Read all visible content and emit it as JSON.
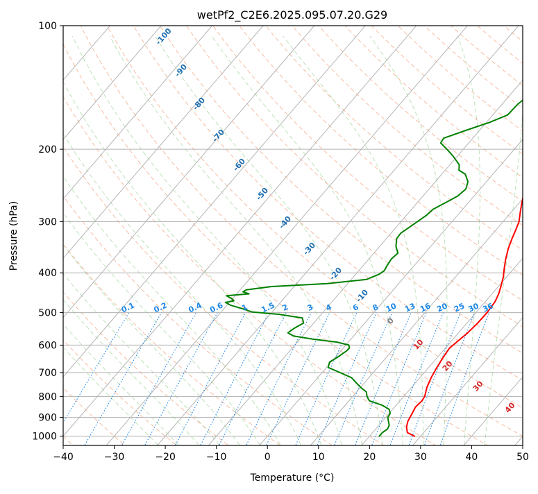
{
  "chart_data": {
    "type": "line",
    "title": "wetPf2_C2E6.2025.095.07.20.G29",
    "xlabel": "Temperature (°C)",
    "ylabel": "Pressure (hPa)",
    "xlim": [
      -40,
      50
    ],
    "ylim": [
      1050,
      100
    ],
    "y_scale": "log",
    "grid": true,
    "x_ticks": [
      "−40",
      "−30",
      "−20",
      "−10",
      "0",
      "10",
      "20",
      "30",
      "40",
      "50"
    ],
    "y_ticks": [
      {
        "value": 1000,
        "label": "1000"
      },
      {
        "value": 900,
        "label": "900"
      },
      {
        "value": 800,
        "label": "800"
      },
      {
        "value": 700,
        "label": "700"
      },
      {
        "value": 600,
        "label": "600"
      },
      {
        "value": 500,
        "label": "500"
      },
      {
        "value": 400,
        "label": "400"
      },
      {
        "value": 300,
        "label": "300"
      },
      {
        "value": 200,
        "label": "200"
      },
      {
        "value": 100,
        "label": "100"
      }
    ],
    "series": [
      {
        "role": "temperature",
        "color": "#ff0000",
        "points": [
          [
            28.8,
            1000
          ],
          [
            26.8,
            980
          ],
          [
            25.7,
            950
          ],
          [
            25.0,
            920
          ],
          [
            24.5,
            880
          ],
          [
            24.1,
            850
          ],
          [
            24.3,
            820
          ],
          [
            24.1,
            800
          ],
          [
            23.0,
            760
          ],
          [
            22.2,
            720
          ],
          [
            21.6,
            680
          ],
          [
            21.1,
            640
          ],
          [
            20.8,
            610
          ],
          [
            21.2,
            590
          ],
          [
            21.8,
            560
          ],
          [
            22.1,
            530
          ],
          [
            22.2,
            500
          ],
          [
            21.9,
            470
          ],
          [
            21.3,
            450
          ],
          [
            20.4,
            430
          ],
          [
            19.4,
            410
          ],
          [
            18.1,
            390
          ],
          [
            16.8,
            370
          ],
          [
            15.6,
            350
          ],
          [
            14.6,
            330
          ],
          [
            13.9,
            315
          ],
          [
            13.1,
            300
          ],
          [
            11.8,
            285
          ],
          [
            10.5,
            270
          ],
          [
            9.2,
            255
          ],
          [
            8.0,
            240
          ],
          [
            7.0,
            225
          ],
          [
            6.2,
            210
          ],
          [
            6.0,
            195
          ],
          [
            5.9,
            185
          ],
          [
            5.3,
            175
          ],
          [
            4.4,
            165
          ],
          [
            3.5,
            155
          ],
          [
            3.1,
            145
          ],
          [
            3.3,
            135
          ],
          [
            3.1,
            125
          ],
          [
            2.6,
            118
          ],
          [
            2.0,
            112
          ],
          [
            1.5,
            106
          ],
          [
            1.8,
            100
          ]
        ]
      },
      {
        "role": "dewpoint",
        "color": "#008000",
        "points": [
          [
            21.9,
            1000
          ],
          [
            21.9,
            980
          ],
          [
            22.3,
            960
          ],
          [
            22.0,
            940
          ],
          [
            21.2,
            920
          ],
          [
            20.4,
            900
          ],
          [
            20.2,
            880
          ],
          [
            19.3,
            860
          ],
          [
            17.2,
            840
          ],
          [
            14.0,
            820
          ],
          [
            12.8,
            800
          ],
          [
            11.9,
            780
          ],
          [
            10.0,
            760
          ],
          [
            8.3,
            740
          ],
          [
            6.6,
            720
          ],
          [
            3.5,
            700
          ],
          [
            0.3,
            680
          ],
          [
            -0.3,
            660
          ],
          [
            0.5,
            640
          ],
          [
            1.1,
            620
          ],
          [
            1.2,
            610
          ],
          [
            0.6,
            600
          ],
          [
            -2.2,
            590
          ],
          [
            -7.5,
            580
          ],
          [
            -11.8,
            570
          ],
          [
            -13.4,
            560
          ],
          [
            -12.9,
            545
          ],
          [
            -12.0,
            530
          ],
          [
            -13.1,
            515
          ],
          [
            -18.2,
            505
          ],
          [
            -24.0,
            498
          ],
          [
            -26.1,
            490
          ],
          [
            -29.2,
            480
          ],
          [
            -30.8,
            472
          ],
          [
            -29.4,
            468
          ],
          [
            -30.2,
            462
          ],
          [
            -31.7,
            455
          ],
          [
            -27.6,
            450
          ],
          [
            -29.1,
            445
          ],
          [
            -28.8,
            440
          ],
          [
            -24.4,
            432
          ],
          [
            -14.0,
            425
          ],
          [
            -7.0,
            415
          ],
          [
            -5.4,
            403
          ],
          [
            -5.0,
            395
          ],
          [
            -5.3,
            385
          ],
          [
            -5.6,
            370
          ],
          [
            -5.3,
            358
          ],
          [
            -6.8,
            345
          ],
          [
            -8.0,
            330
          ],
          [
            -8.1,
            320
          ],
          [
            -7.1,
            305
          ],
          [
            -6.1,
            290
          ],
          [
            -5.8,
            280
          ],
          [
            -4.5,
            270
          ],
          [
            -3.2,
            260
          ],
          [
            -2.8,
            250
          ],
          [
            -3.6,
            240
          ],
          [
            -5.4,
            230
          ],
          [
            -7.3,
            225
          ],
          [
            -8.2,
            218
          ],
          [
            -10.8,
            208
          ],
          [
            -13.2,
            200
          ],
          [
            -15.5,
            193
          ],
          [
            -15.7,
            188
          ],
          [
            -12.7,
            180
          ],
          [
            -9.4,
            172
          ],
          [
            -7.1,
            165
          ],
          [
            -6.9,
            155
          ],
          [
            -6.0,
            145
          ],
          [
            -4.6,
            140
          ],
          [
            -3.4,
            133
          ],
          [
            -2.5,
            125
          ],
          [
            -1.4,
            118
          ],
          [
            -0.3,
            112
          ],
          [
            0.8,
            106
          ],
          [
            1.5,
            100
          ]
        ]
      }
    ],
    "mixing_ratio_labels": [
      "0.1",
      "0.2",
      "0.4",
      "0.6",
      "1",
      "1.5",
      "2",
      "3",
      "4",
      "6",
      "8",
      "10",
      "13",
      "16",
      "20",
      "25",
      "30",
      "36"
    ],
    "isotherm_labels": [
      "-100",
      "-90",
      "-80",
      "-70",
      "-60",
      "-50",
      "-40",
      "-30",
      "-20",
      "-10",
      "0",
      "10",
      "20",
      "30",
      "40"
    ],
    "colors": {
      "temperature": "#ff0000",
      "dewpoint": "#008000",
      "isobar": "#b0b0b0",
      "isotherm": "#b5b5b5",
      "dry_adiabat": "#f4a582",
      "moist_adiabat": "#a6d7a0",
      "mixing_ratio": "#1e88e5",
      "cold_label": "#1f6fb2",
      "zero_label": "#808080",
      "warm_label": "#d62728"
    }
  }
}
